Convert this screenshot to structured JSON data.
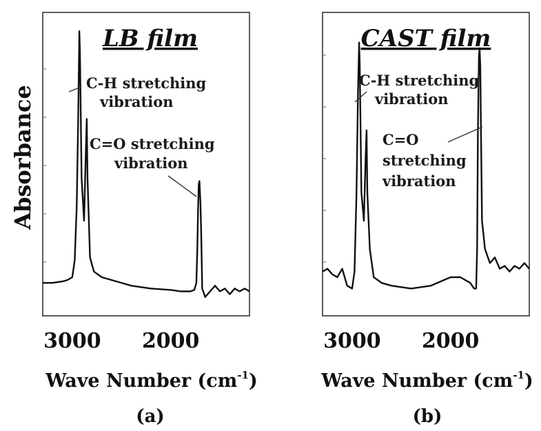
{
  "y_axis_label": "Absorbance",
  "chart_data": [
    {
      "type": "line",
      "title": "LB film",
      "caption": "(a)",
      "xlabel": "Wave Number (cm",
      "xlabel_sup": "-1",
      "xlabel_close": ")",
      "ylabel": "Absorbance",
      "xlim": [
        3300,
        1200
      ],
      "ylim": [
        0,
        1.0
      ],
      "x_reversed": true,
      "xticks": [
        3000,
        2000
      ],
      "grid": false,
      "annotations": [
        {
          "lines": [
            "C-H stretching",
            "vibration"
          ],
          "points_to": 2930
        },
        {
          "lines": [
            "C=O stretching",
            "vibration"
          ],
          "points_to": 1715
        }
      ],
      "series": [
        {
          "x": [
            3300,
            3200,
            3100,
            3050,
            3000,
            2975,
            2955,
            2940,
            2928,
            2922,
            2905,
            2880,
            2862,
            2853,
            2845,
            2820,
            2780,
            2700,
            2600,
            2400,
            2200,
            2000,
            1900,
            1800,
            1760,
            1740,
            1730,
            1722,
            1715,
            1708,
            1698,
            1690,
            1680,
            1650,
            1600,
            1550,
            1500,
            1450,
            1400,
            1350,
            1300,
            1250,
            1200
          ],
          "y": [
            0.08,
            0.08,
            0.085,
            0.09,
            0.1,
            0.16,
            0.35,
            0.65,
            0.97,
            0.9,
            0.45,
            0.3,
            0.55,
            0.66,
            0.45,
            0.17,
            0.12,
            0.1,
            0.09,
            0.07,
            0.06,
            0.055,
            0.05,
            0.05,
            0.055,
            0.08,
            0.2,
            0.34,
            0.43,
            0.44,
            0.36,
            0.25,
            0.06,
            0.03,
            0.05,
            0.07,
            0.05,
            0.06,
            0.04,
            0.06,
            0.05,
            0.06,
            0.05
          ]
        }
      ]
    },
    {
      "type": "line",
      "title": "CAST film",
      "caption": "(b)",
      "xlabel": "Wave Number (cm",
      "xlabel_sup": "-1",
      "xlabel_close": ")",
      "ylabel": "",
      "xlim": [
        3300,
        1200
      ],
      "ylim": [
        0,
        1.0
      ],
      "x_reversed": true,
      "xticks": [
        3000,
        2000
      ],
      "grid": false,
      "annotations": [
        {
          "lines": [
            "C-H stretching",
            "vibration"
          ],
          "points_to": 2925
        },
        {
          "lines": [
            "C=O",
            "stretching",
            "vibration"
          ],
          "points_to": 1705
        }
      ],
      "series": [
        {
          "x": [
            3300,
            3250,
            3200,
            3150,
            3100,
            3050,
            3000,
            2975,
            2955,
            2940,
            2928,
            2922,
            2905,
            2880,
            2862,
            2853,
            2845,
            2820,
            2780,
            2700,
            2600,
            2400,
            2200,
            2000,
            1900,
            1800,
            1760,
            1740,
            1730,
            1722,
            1712,
            1705,
            1698,
            1690,
            1680,
            1650,
            1600,
            1550,
            1500,
            1450,
            1400,
            1350,
            1300,
            1250,
            1200
          ],
          "y": [
            0.12,
            0.13,
            0.11,
            0.1,
            0.13,
            0.07,
            0.06,
            0.12,
            0.4,
            0.75,
            0.93,
            0.85,
            0.4,
            0.3,
            0.53,
            0.62,
            0.4,
            0.2,
            0.1,
            0.08,
            0.07,
            0.06,
            0.07,
            0.1,
            0.1,
            0.08,
            0.06,
            0.06,
            0.2,
            0.6,
            0.88,
            0.91,
            0.85,
            0.6,
            0.3,
            0.2,
            0.15,
            0.17,
            0.13,
            0.14,
            0.12,
            0.14,
            0.13,
            0.15,
            0.13
          ]
        }
      ]
    }
  ]
}
